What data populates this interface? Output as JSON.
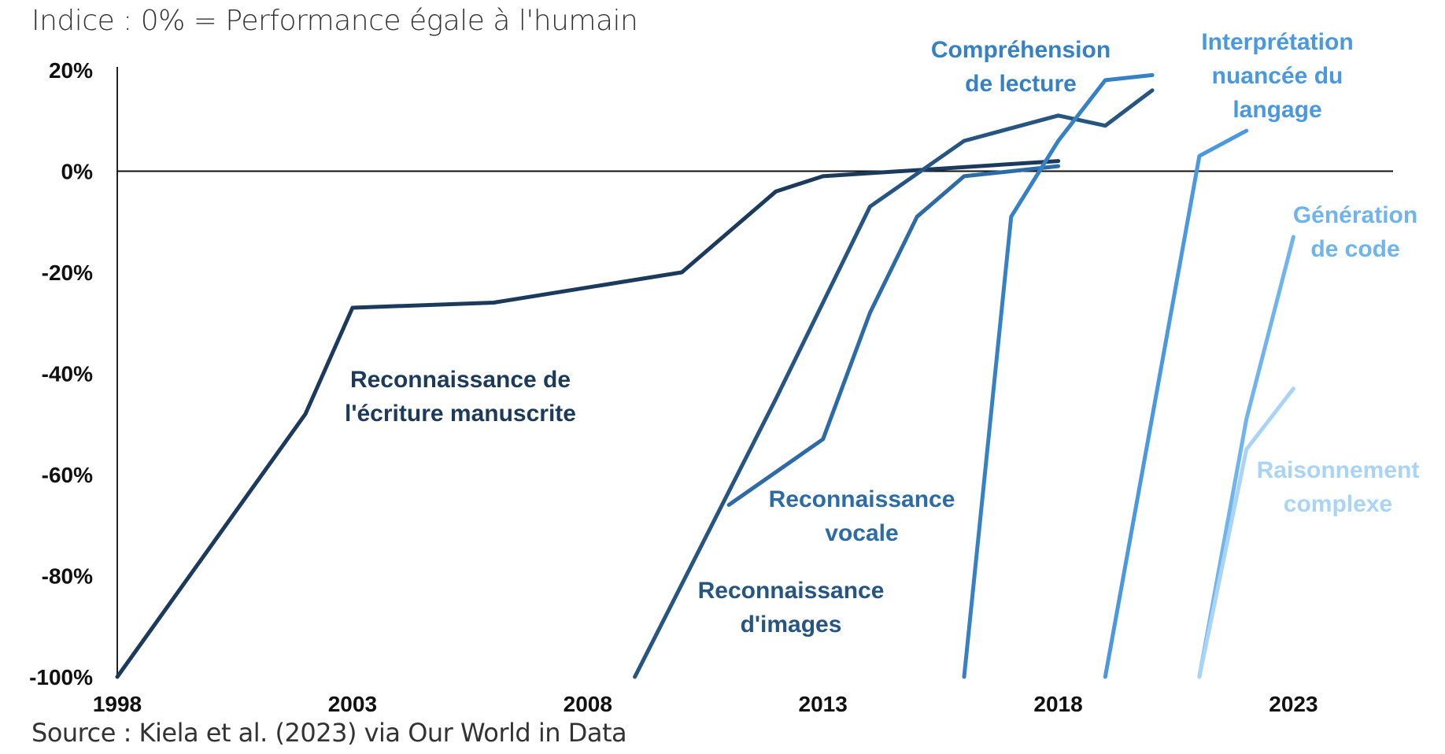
{
  "subtitle": "Indice : 0% = Performance égale à l'humain",
  "source": "Source : Kiela et al. (2023) via Our World in Data",
  "chart_data": {
    "type": "line",
    "title": "",
    "subtitle": "Indice : 0% = Performance égale à l'humain",
    "xlabel": "",
    "ylabel": "",
    "xlim": [
      1998,
      2025
    ],
    "ylim": [
      -100,
      20
    ],
    "x_ticks": [
      "1998",
      "2003",
      "2008",
      "2013",
      "2018",
      "2023"
    ],
    "y_ticks": [
      "20%",
      "0%",
      "-20%",
      "-40%",
      "-60%",
      "-80%",
      "-100%"
    ],
    "grid": false,
    "legend": "none",
    "reference_line": 0,
    "series": [
      {
        "name": "Reconnaissance de l'écriture manuscrite",
        "label_lines": [
          "Reconnaissance de",
          "l'écriture manuscrite"
        ],
        "color": "#1b3a5c",
        "points": [
          [
            1998,
            -100
          ],
          [
            2002,
            -48
          ],
          [
            2003,
            -27
          ],
          [
            2006,
            -26
          ],
          [
            2010,
            -20
          ],
          [
            2012,
            -4
          ],
          [
            2013,
            -1
          ],
          [
            2018,
            2
          ]
        ]
      },
      {
        "name": "Reconnaissance d'images",
        "label_lines": [
          "Reconnaissance",
          "d'images"
        ],
        "color": "#255580",
        "points": [
          [
            2009,
            -100
          ],
          [
            2012,
            -45
          ],
          [
            2014,
            -7
          ],
          [
            2016,
            6
          ],
          [
            2018,
            11
          ],
          [
            2019,
            9
          ],
          [
            2020,
            16
          ]
        ]
      },
      {
        "name": "Reconnaissance vocale",
        "label_lines": [
          "Reconnaissance",
          "vocale"
        ],
        "color": "#2c6ba5",
        "points": [
          [
            2011,
            -66
          ],
          [
            2013,
            -53
          ],
          [
            2014,
            -28
          ],
          [
            2015,
            -9
          ],
          [
            2016,
            -1
          ],
          [
            2018,
            1
          ]
        ]
      },
      {
        "name": "Compréhension de lecture",
        "label_lines": [
          "Compréhension",
          "de lecture"
        ],
        "color": "#3680c4",
        "points": [
          [
            2016,
            -100
          ],
          [
            2017,
            -9
          ],
          [
            2018,
            6
          ],
          [
            2019,
            18
          ],
          [
            2020,
            19
          ]
        ]
      },
      {
        "name": "Interprétation nuancée du langage",
        "label_lines": [
          "Interprétation",
          "nuancée du",
          "langage"
        ],
        "color": "#4a98dd",
        "points": [
          [
            2019,
            -100
          ],
          [
            2021,
            3
          ],
          [
            2022,
            8
          ]
        ]
      },
      {
        "name": "Génération de code",
        "label_lines": [
          "Génération",
          "de code"
        ],
        "color": "#6fb4ec",
        "points": [
          [
            2021,
            -100
          ],
          [
            2022,
            -49
          ],
          [
            2023,
            -13
          ]
        ]
      },
      {
        "name": "Raisonnement complexe",
        "label_lines": [
          "Raisonnement",
          "complexe"
        ],
        "color": "#a9d4f6",
        "points": [
          [
            2021,
            -100
          ],
          [
            2022,
            -55
          ],
          [
            2023,
            -43
          ]
        ]
      }
    ]
  }
}
